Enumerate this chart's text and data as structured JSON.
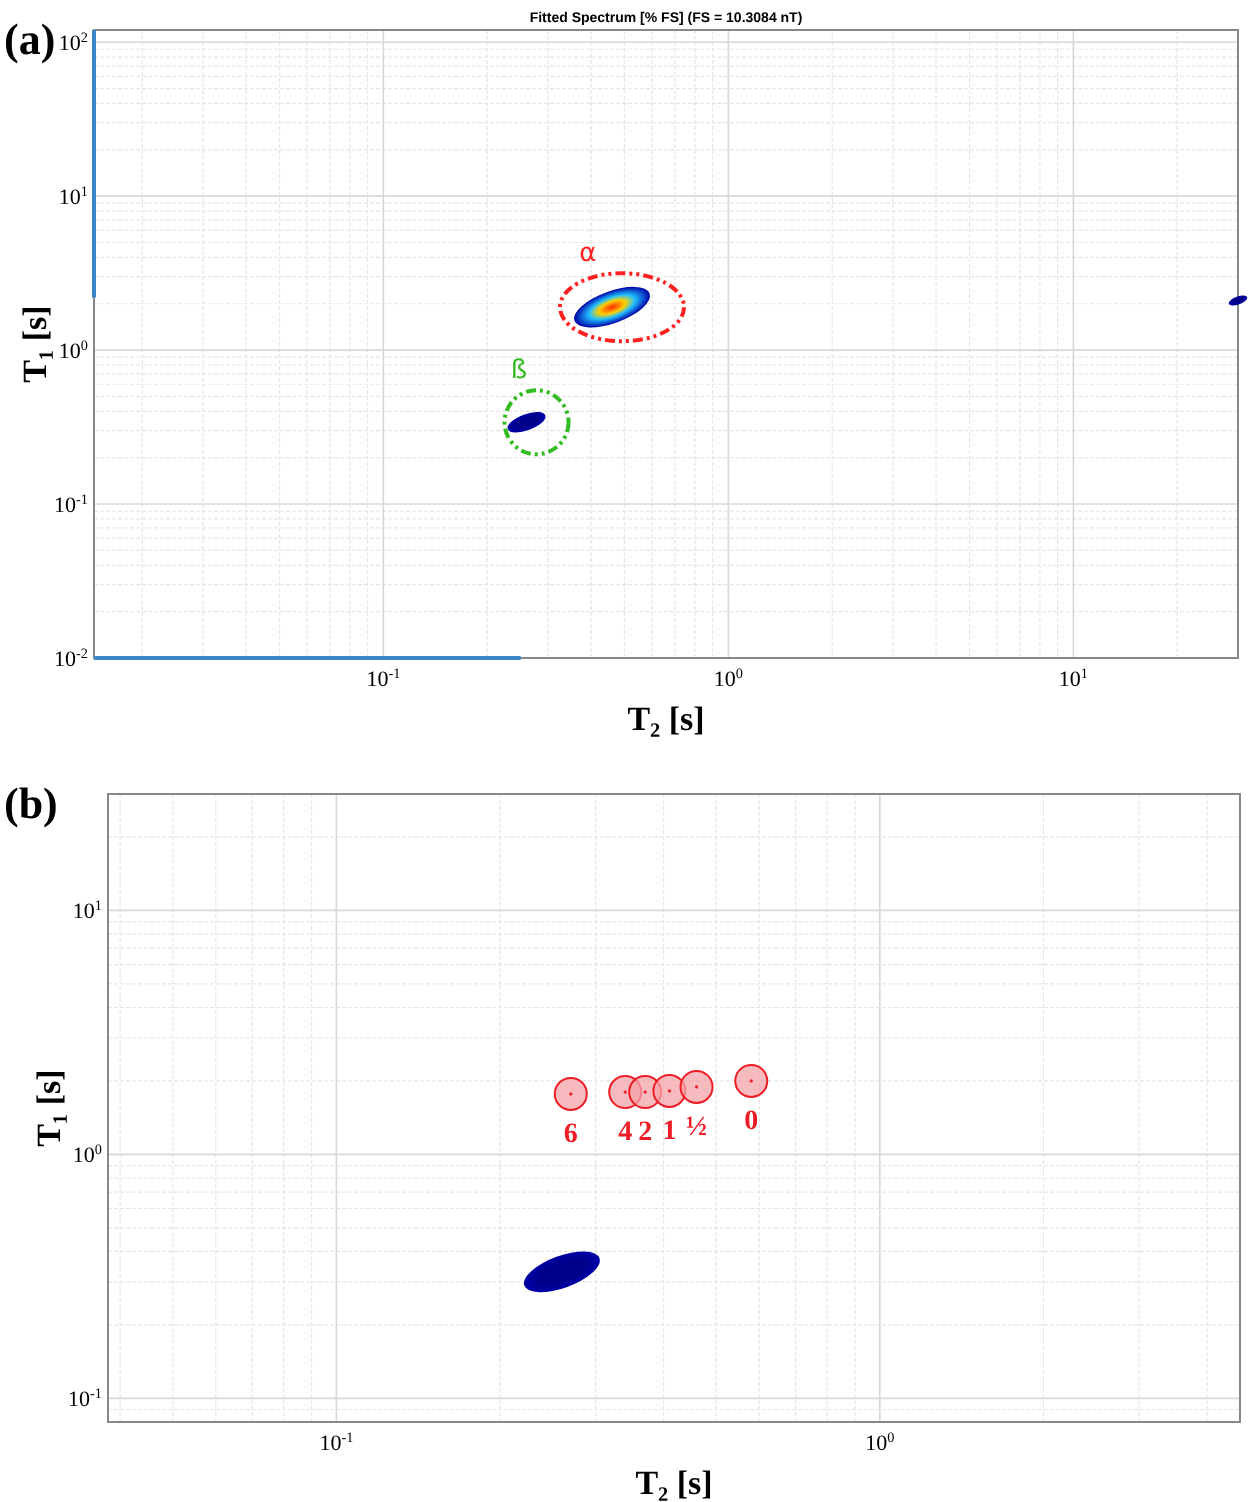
{
  "chart_data": [
    {
      "type": "bubble",
      "title": "Fitted Spectrum [% FS] (FS = 10.3084 nT)",
      "xlabel": "T₂ [s]",
      "ylabel": "T₁ [s]",
      "log": "xy",
      "grid": true,
      "xlim": [
        0.0145,
        30
      ],
      "ylim": [
        0.01,
        120
      ],
      "xticks": [
        {
          "value": 0.1,
          "label": "10$^{-1}$"
        },
        {
          "value": 1,
          "label": "10$^{0}$"
        },
        {
          "value": 10,
          "label": "10$^{1}$"
        }
      ],
      "yticks": [
        {
          "value": 0.01,
          "label": "10$^{-2}$"
        },
        {
          "value": 0.1,
          "label": "10$^{-1}$"
        },
        {
          "value": 1,
          "label": "10$^{0}$"
        },
        {
          "value": 10,
          "label": "10$^{1}$"
        },
        {
          "value": 100,
          "label": "10$^{2}$"
        }
      ],
      "series": [
        {
          "x": [
            0.46,
            0.26,
            30
          ],
          "values": [
            1.9,
            0.34,
            2.1
          ],
          "sizes": [
            1,
            0.25,
            0.06
          ],
          "colors": [
            "#ff2a00",
            "#00008b",
            "#00008b"
          ]
        },
        {
          "type": "line",
          "x": [
            0.0145,
            0.0145
          ],
          "values": [
            120,
            2.2
          ],
          "color": "#3a86c8"
        },
        {
          "type": "line",
          "x": [
            0.0145,
            0.25
          ],
          "values": [
            0.01,
            0.01
          ],
          "color": "#3a86c8"
        }
      ],
      "annotations": [
        "(a)",
        {
          "text": "α",
          "x": 0.46,
          "y": 1.9
        },
        {
          "text": "ß",
          "x": 0.26,
          "y": 0.34
        }
      ]
    },
    {
      "type": "scatter",
      "xlabel": "T₂ [s]",
      "ylabel": "T₁ [s]",
      "log": "xy",
      "grid": true,
      "xlim": [
        0.038,
        4.6
      ],
      "ylim": [
        0.08,
        30
      ],
      "xticks": [
        {
          "value": 0.1,
          "label": "10$^{-1}$"
        },
        {
          "value": 1,
          "label": "10$^{0}$"
        }
      ],
      "yticks": [
        {
          "value": 0.1,
          "label": "10$^{-1}$"
        },
        {
          "value": 1,
          "label": "10$^{0}$"
        },
        {
          "value": 10,
          "label": "10$^{1}$"
        }
      ],
      "series": [
        {
          "type": "bubble",
          "x": [
            0.26
          ],
          "values": [
            0.33
          ],
          "sizes": [
            1
          ],
          "colors": [
            "#00008b"
          ]
        },
        {
          "marker": "circle",
          "x": [
            0.27,
            0.34,
            0.37,
            0.41,
            0.46,
            0.58
          ],
          "values": [
            1.77,
            1.8,
            1.8,
            1.82,
            1.89,
            2.0
          ],
          "color": "#f4a3a8"
        }
      ],
      "annotations": [
        "(b)",
        {
          "text": "6",
          "x": 0.27,
          "y": 1.77
        },
        {
          "text": "4",
          "x": 0.34,
          "y": 1.8
        },
        {
          "text": "2",
          "x": 0.37,
          "y": 1.8
        },
        {
          "text": "1",
          "x": 0.41,
          "y": 1.82
        },
        {
          "text": "½",
          "x": 0.46,
          "y": 1.89
        },
        {
          "text": "0",
          "x": 0.58,
          "y": 2.0
        }
      ]
    }
  ]
}
